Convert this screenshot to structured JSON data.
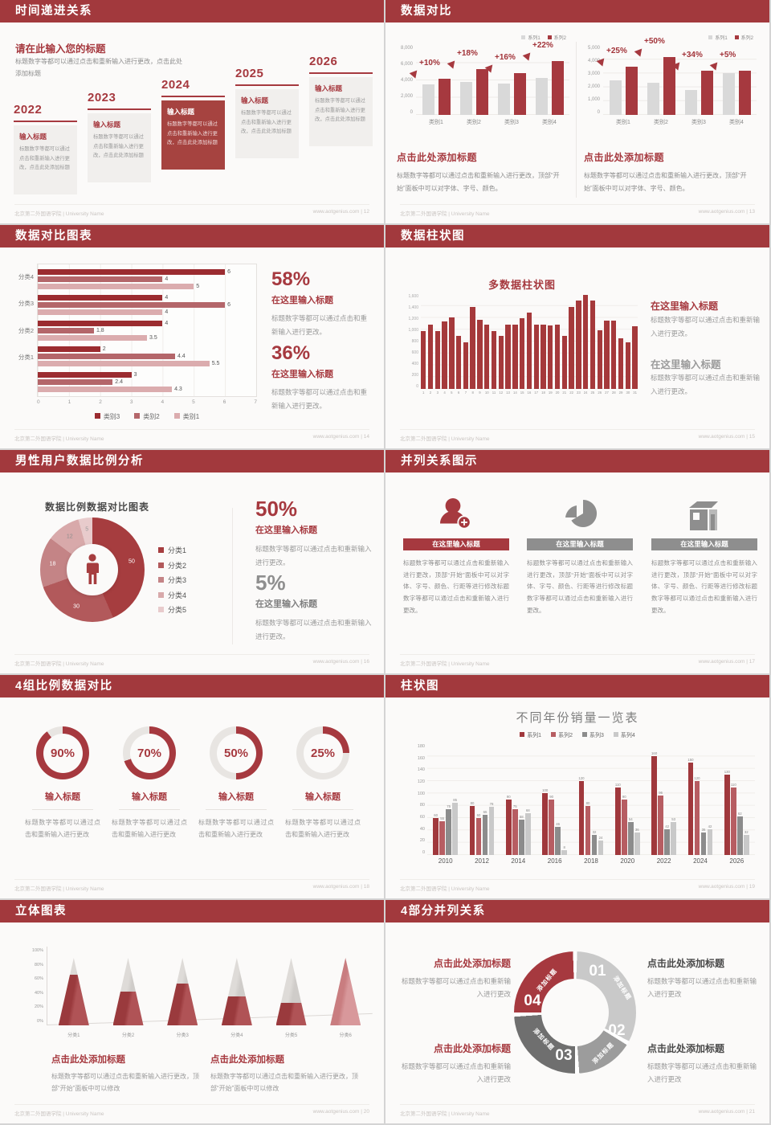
{
  "footer": {
    "left": "北京第二外国语学院 | University Name",
    "site": "www.aotgenius.com"
  },
  "colors": {
    "header_red": "#A2393D",
    "accent_red": "#A6393F",
    "bar_dark_red": "#A5393B",
    "bar_medium_red": "#B4666A",
    "bar_light_pink": "#DBACAE",
    "bar_gray": "#D9D9D9",
    "dark_gray": "#6F6F6F",
    "medium_gray": "#9C9C9C",
    "light_gray": "#C9C9C9",
    "slide_bg": "#FBFAF9",
    "page_bg": "#D4D4D4"
  },
  "placeholders": {
    "box_body": "标题数字等都可以通过点击和重新输入进行更改，点击此处添加标题",
    "change_dot": "标题数字等都可以通过点击和重新输入进行更改。",
    "change": "标题数字等都可以通过点击和重新输入进行更改",
    "font_body": "标题数字等都可以通过点击和重新输入进行更改，顶部“开始”面板中可以对字体、字号、颜色。",
    "col_body": "标题数字等都可以通过点击和重新输入进行更改，顶部“开始”面板中可以对字体、字号、颜色、行距等进行修改标题数字等都可以通过点击和重新输入进行更改。",
    "modify_body": "标题数字等都可以通过点击和重新输入进行更改，顶部“开始”面板中可以修改",
    "click_add": "点击此处添加标题",
    "input_title": "输入标题",
    "here_title": "在这里输入标题",
    "add_label": "添加标题"
  },
  "slides": {
    "s1": {
      "header": "时间递进关系",
      "page": "12",
      "intro_title": "请在此输入您的标题",
      "years": [
        "2022",
        "2023",
        "2024",
        "2025",
        "2026"
      ]
    },
    "s2": {
      "header": "数据对比",
      "page": "13"
    },
    "s3": {
      "header": "数据对比图表",
      "page": "14",
      "stats": [
        {
          "pct": "58%"
        },
        {
          "pct": "36%"
        }
      ]
    },
    "s4": {
      "header": "数据柱状图",
      "page": "15"
    },
    "s5": {
      "header": "男性用户数据比例分析",
      "page": "16",
      "stats": [
        {
          "pct": "50%"
        },
        {
          "pct": "5%"
        }
      ]
    },
    "s6": {
      "header": "并列关系图示",
      "page": "17"
    },
    "s7": {
      "header": "4组比例数据对比",
      "page": "18"
    },
    "s8": {
      "header": "柱状图",
      "page": "19"
    },
    "s9": {
      "header": "立体图表",
      "page": "20"
    },
    "s10": {
      "header": "4部分并列关系",
      "page": "21",
      "parts": [
        {
          "num": "01"
        },
        {
          "num": "02"
        },
        {
          "num": "03"
        },
        {
          "num": "04"
        }
      ]
    }
  },
  "chart_data": [
    {
      "id": "compare_a",
      "type": "bar",
      "categories": [
        "类别1",
        "类别2",
        "类别3",
        "类别4"
      ],
      "series": [
        {
          "name": "系列1",
          "values": [
            3500,
            3800,
            3650,
            4300
          ]
        },
        {
          "name": "系列2",
          "values": [
            4200,
            5300,
            4800,
            6200
          ]
        }
      ],
      "growth_labels": [
        "+10%",
        "+18%",
        "+16%",
        "+22%"
      ],
      "ylim": [
        0,
        8000
      ],
      "yticks": [
        "8,000",
        "6,000",
        "4,000",
        "2,000",
        "0"
      ],
      "colors": [
        "#D9D9D9",
        "#A6393F"
      ],
      "legend_position": "top-right",
      "grid": true
    },
    {
      "id": "compare_b",
      "type": "bar",
      "categories": [
        "类别1",
        "类别2",
        "类别3",
        "类别4"
      ],
      "series": [
        {
          "name": "系列1",
          "values": [
            2500,
            2350,
            1800,
            3050
          ]
        },
        {
          "name": "系列2",
          "values": [
            3500,
            4200,
            3200,
            3200
          ]
        }
      ],
      "growth_labels": [
        "+25%",
        "+50%",
        "+34%",
        "+5%"
      ],
      "ylim": [
        0,
        5000
      ],
      "yticks": [
        "5,000",
        "4,000",
        "3,000",
        "2,000",
        "1,000",
        "0"
      ],
      "colors": [
        "#D9D9D9",
        "#A6393F"
      ],
      "legend_position": "top-right",
      "grid": true
    },
    {
      "id": "hbar",
      "type": "bar",
      "orientation": "horizontal",
      "groups": [
        "分类4",
        "分类3",
        "分类2",
        "分类1",
        ""
      ],
      "series": [
        {
          "name": "类别3",
          "values": [
            6,
            4,
            4,
            2,
            3
          ]
        },
        {
          "name": "类别2",
          "values": [
            4,
            6,
            1.8,
            4.4,
            2.4
          ]
        },
        {
          "name": "类别1",
          "values": [
            5,
            4,
            3.5,
            5.5,
            4.3
          ]
        }
      ],
      "xlim": [
        0,
        7
      ],
      "xticks": [
        "0",
        "1",
        "2",
        "3",
        "4",
        "5",
        "6",
        "7"
      ],
      "colors": [
        "#9B2C30",
        "#B4666A",
        "#DBACAE"
      ],
      "legend_position": "bottom",
      "grid": true
    },
    {
      "id": "daily",
      "type": "bar",
      "title": "多数据柱状图",
      "categories": [
        "1",
        "2",
        "3",
        "4",
        "5",
        "6",
        "7",
        "8",
        "9",
        "10",
        "11",
        "12",
        "13",
        "14",
        "15",
        "16",
        "17",
        "18",
        "19",
        "20",
        "21",
        "22",
        "23",
        "24",
        "25",
        "26",
        "27",
        "28",
        "29",
        "30",
        "31"
      ],
      "values": [
        980,
        1090,
        980,
        1140,
        1210,
        890,
        790,
        1390,
        1170,
        1090,
        970,
        890,
        1080,
        1080,
        1190,
        1290,
        1090,
        1080,
        1070,
        1090,
        890,
        1390,
        1490,
        1590,
        1490,
        990,
        1150,
        1150,
        860,
        790,
        1060
      ],
      "ylim": [
        0,
        1600
      ],
      "yticks": [
        "1,600",
        "1,400",
        "1,200",
        "1,000",
        "800",
        "600",
        "400",
        "200",
        "0"
      ],
      "color": "#A5393B",
      "grid": true
    },
    {
      "id": "donut",
      "type": "pie",
      "title": "数据比例数据对比图表",
      "labels": [
        "分类1",
        "分类2",
        "分类3",
        "分类4",
        "分类5"
      ],
      "values": [
        50,
        30,
        18,
        12,
        5
      ],
      "colors": [
        "#A63D3F",
        "#B2595B",
        "#C48486",
        "#D8A9AA",
        "#E8CBCC"
      ],
      "label_colors": [
        "#ffffff",
        "#ffffff",
        "#ffffff",
        "#8d8d8d",
        "#9a9a9a"
      ],
      "legend_position": "right",
      "center_icon": "male-person-icon"
    },
    {
      "id": "rings",
      "type": "pie",
      "values": [
        90,
        70,
        50,
        25
      ],
      "labels": [
        "90%",
        "70%",
        "50%",
        "25%"
      ],
      "color": "#A6393F",
      "track_color": "#E8E5E2"
    },
    {
      "id": "years",
      "type": "bar",
      "title": "不同年份销量一览表",
      "categories": [
        "2010",
        "2012",
        "2014",
        "2016",
        "2018",
        "2020",
        "2022",
        "2024",
        "2026"
      ],
      "series": [
        {
          "name": "系列1",
          "values": [
            60,
            80,
            90,
            100,
            120,
            110,
            160,
            150,
            130
          ]
        },
        {
          "name": "系列2",
          "values": [
            55,
            60,
            75,
            90,
            80,
            90,
            96,
            120,
            110
          ]
        },
        {
          "name": "系列3",
          "values": [
            75,
            65,
            58,
            46,
            32,
            54,
            42,
            36,
            62
          ]
        },
        {
          "name": "系列4",
          "values": [
            85,
            78,
            68,
            8,
            24,
            36,
            53,
            42,
            32
          ]
        }
      ],
      "ylim": [
        0,
        180
      ],
      "yticks": [
        "180",
        "160",
        "140",
        "120",
        "100",
        "80",
        "60",
        "40",
        "20",
        "0"
      ],
      "colors": [
        "#A0383C",
        "#B75D62",
        "#8C8C8C",
        "#C9C9C9"
      ],
      "legend_position": "top",
      "grid": true
    },
    {
      "id": "cones",
      "type": "bar",
      "shape": "cone",
      "categories": [
        "分类1",
        "分类2",
        "分类3",
        "分类4",
        "分类5",
        "分类6"
      ],
      "values": [
        75,
        50,
        62,
        43,
        33,
        100
      ],
      "ylim": [
        0,
        100
      ],
      "yticks": [
        "100%",
        "80%",
        "60%",
        "40%",
        "20%",
        "0%"
      ],
      "color": "#A6393F",
      "last_cone_color": "#D08185"
    }
  ]
}
